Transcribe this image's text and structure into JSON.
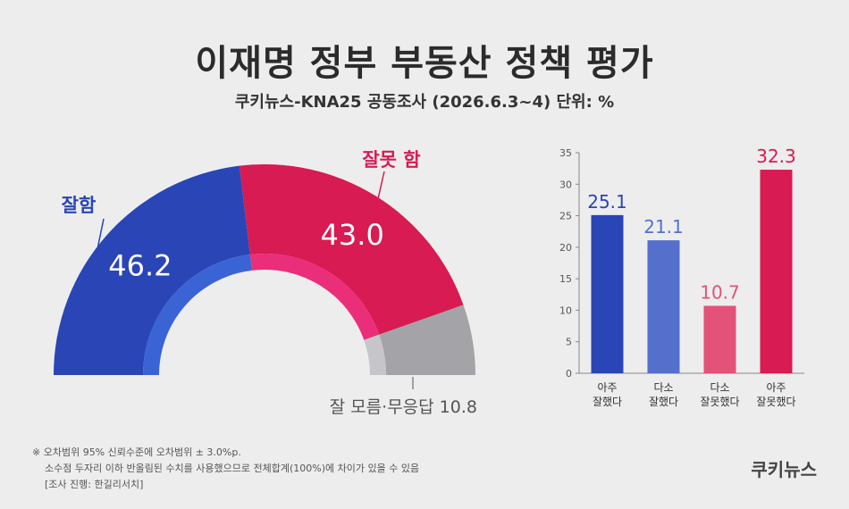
{
  "title": "이재명 정부 부동산 정책 평가",
  "subtitle": "쿠키뉴스-KNA25 공동조사 (2026.6.3~4) 단위: %",
  "footnote": {
    "line1": "※ 오차범위 95% 신뢰수준에 오차범위 ± 3.0%p.",
    "line2": "소수점 두자리 이하 반올림된 수치를 사용했으므로 전체합계(100%)에 차이가 있을 수 있음",
    "line3": "[조사 진행: 한길리서치]"
  },
  "brand": "쿠키뉴스",
  "colors": {
    "good": "#2a45b5",
    "good_inner": "#3a63d6",
    "bad": "#d81b52",
    "bad_inner": "#ea2e7a",
    "unknown": "#a4a4a8",
    "unknown_inner": "#c6c6ca",
    "bar_very_good": "#2a45b5",
    "bar_good": "#5570cc",
    "bar_bad": "#e35278",
    "bar_very_bad": "#d81b52"
  },
  "chart_data": [
    {
      "type": "pie",
      "style": "half-donut",
      "slices": [
        {
          "label": "잘함",
          "value": 46.2,
          "value_label": "46.2"
        },
        {
          "label": "잘못 함",
          "value": 43.0,
          "value_label": "43.0"
        },
        {
          "label": "잘 모름·무응답",
          "value": 10.8,
          "value_label": "10.8"
        }
      ]
    },
    {
      "type": "bar",
      "categories": [
        [
          "아주",
          "잘했다"
        ],
        [
          "다소",
          "잘했다"
        ],
        [
          "다소",
          "잘못했다"
        ],
        [
          "아주",
          "잘못했다"
        ]
      ],
      "values": [
        25.1,
        21.1,
        10.7,
        32.3
      ],
      "value_labels": [
        "25.1",
        "21.1",
        "10.7",
        "32.3"
      ],
      "ylim": [
        0,
        35
      ],
      "yticks": [
        "0",
        "5",
        "10",
        "15",
        "20",
        "25",
        "30",
        "35"
      ],
      "grid": false
    }
  ]
}
